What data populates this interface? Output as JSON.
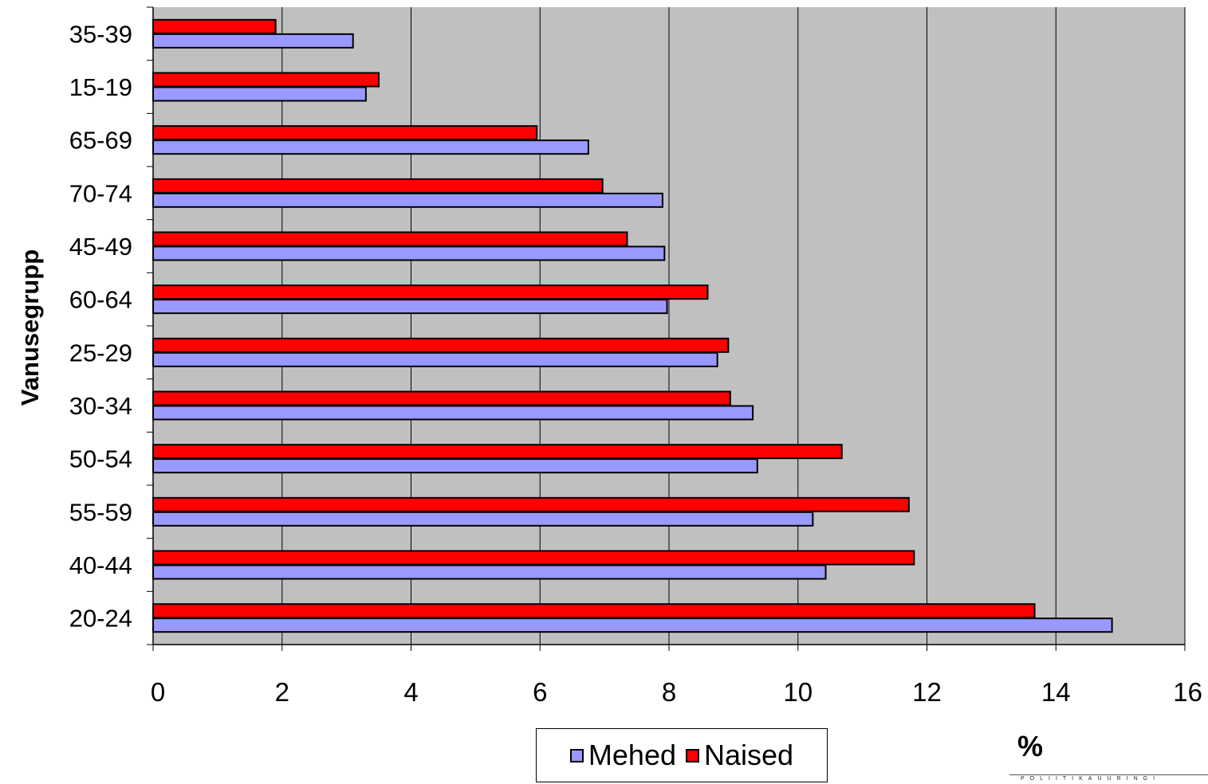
{
  "chart_data": {
    "type": "bar",
    "orientation": "horizontal",
    "title": "",
    "xlabel": "%",
    "ylabel": "Vanusegrupp",
    "xlim": [
      0,
      16
    ],
    "x_ticks": [
      0,
      2,
      4,
      6,
      8,
      10,
      12,
      14,
      16
    ],
    "grid": true,
    "plot_background": "#c0c0c0",
    "legend_position": "bottom",
    "categories": [
      "35-39",
      "15-19",
      "65-69",
      "70-74",
      "45-49",
      "60-64",
      "25-29",
      "30-34",
      "50-54",
      "55-59",
      "40-44",
      "20-24"
    ],
    "series": [
      {
        "name": "Mehed",
        "color": "#9999ff",
        "values": [
          3.1,
          3.3,
          6.75,
          7.9,
          7.93,
          7.97,
          8.75,
          9.3,
          9.37,
          10.23,
          10.43,
          14.87
        ]
      },
      {
        "name": "Naised",
        "color": "#ff0000",
        "values": [
          1.9,
          3.5,
          5.95,
          6.97,
          7.35,
          8.6,
          8.92,
          8.95,
          10.68,
          11.72,
          11.8,
          13.67
        ]
      }
    ]
  },
  "branding": {
    "text": "POLIITIKAUURINGI"
  }
}
